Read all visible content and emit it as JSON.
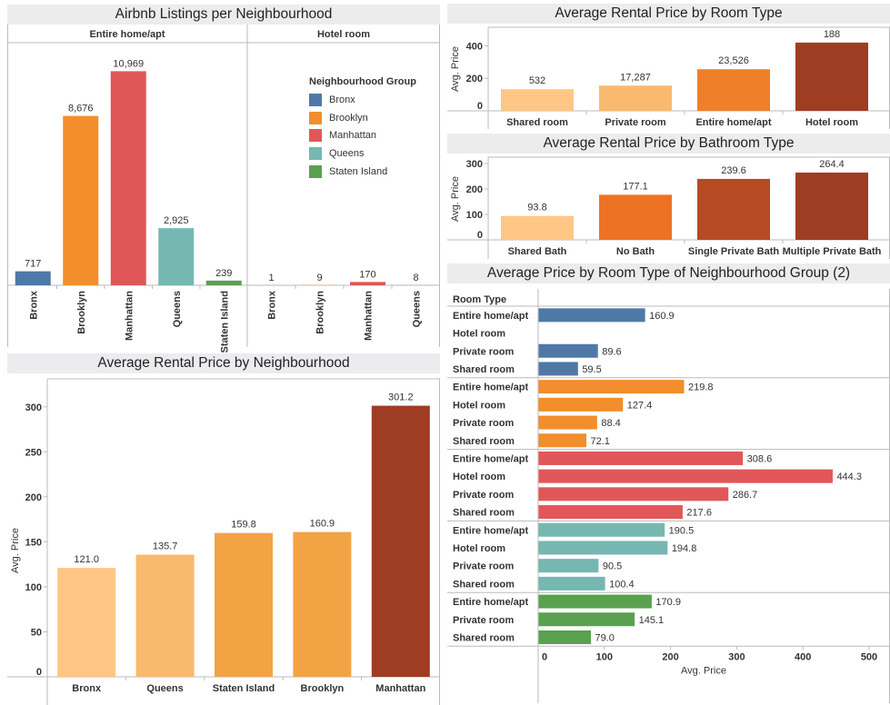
{
  "colors": {
    "Bronx": "#4e79a7",
    "Brooklyn": "#f28e2b",
    "Manhattan": "#e15759",
    "Queens": "#76b7b2",
    "Staten Island": "#59a14f",
    "axis": "#bbbbbb"
  },
  "chart_data": [
    {
      "id": "listings",
      "type": "bar",
      "title": "Airbnb Listings per Neighbourhood",
      "panels": [
        {
          "header": "Entire home/apt",
          "categories": [
            "Bronx",
            "Brooklyn",
            "Manhattan",
            "Queens",
            "Staten Island"
          ],
          "values": [
            717,
            8676,
            10969,
            2925,
            239
          ],
          "labels": [
            "717",
            "8,676",
            "10,969",
            "2,925",
            "239"
          ]
        },
        {
          "header": "Hotel room",
          "categories": [
            "Bronx",
            "Brooklyn",
            "Manhattan",
            "Queens"
          ],
          "values": [
            1,
            9,
            170,
            8
          ],
          "labels": [
            "1",
            "9",
            "170",
            "8"
          ]
        }
      ],
      "legend": {
        "title": "Neighbourhood Group",
        "items": [
          "Bronx",
          "Brooklyn",
          "Manhattan",
          "Queens",
          "Staten Island"
        ],
        "placement": "top-right"
      },
      "ylim": [
        0,
        11500
      ]
    },
    {
      "id": "room-type",
      "type": "bar",
      "title": "Average Rental Price by Room Type",
      "ylabel": "Avg. Price",
      "categories": [
        "Shared room",
        "Private room",
        "Entire home/apt",
        "Hotel room"
      ],
      "values": [
        133,
        155,
        256,
        420
      ],
      "labels": [
        "532",
        "17,287",
        "23,526",
        "188"
      ],
      "colors": [
        "#ffc685",
        "#f9b96e",
        "#f07f2a",
        "#9e3d22"
      ],
      "yticks": [
        0,
        200,
        400
      ],
      "ylim": [
        0,
        500
      ]
    },
    {
      "id": "bathroom",
      "type": "bar",
      "title": "Average Rental Price by Bathroom Type",
      "ylabel": "Avg. Price",
      "categories": [
        "Shared Bath",
        "No Bath",
        "Single Private Bath",
        "Multiple Private Bath"
      ],
      "values": [
        93.8,
        177.1,
        239.6,
        264.4
      ],
      "labels": [
        "93.8",
        "177.1",
        "239.6",
        "264.4"
      ],
      "colors": [
        "#ffc685",
        "#ed7223",
        "#b64a23",
        "#9e3d22"
      ],
      "yticks": [
        0,
        100,
        200,
        300
      ],
      "ylim": [
        0,
        300
      ]
    },
    {
      "id": "neighbourhood-price",
      "type": "bar",
      "title": "Average Rental Price by Neighbourhood",
      "ylabel": "Avg. Price",
      "categories": [
        "Bronx",
        "Queens",
        "Staten Island",
        "Brooklyn",
        "Manhattan"
      ],
      "values": [
        121.0,
        135.7,
        159.8,
        160.9,
        301.2
      ],
      "labels": [
        "121.0",
        "135.7",
        "159.8",
        "160.9",
        "301.2"
      ],
      "colors": [
        "#ffc685",
        "#f9b96e",
        "#f2a444",
        "#f2a444",
        "#9e3d22"
      ],
      "yticks": [
        0,
        50,
        100,
        150,
        200,
        250,
        300
      ],
      "ylim": [
        0,
        325
      ]
    },
    {
      "id": "room-by-group",
      "type": "bar",
      "orientation": "horizontal",
      "title": "Average Price by Room Type of Neighbourhood Group (2)",
      "row_header": "Room Type",
      "xlabel": "Avg. Price",
      "xticks": [
        0,
        100,
        200,
        300,
        400,
        500
      ],
      "xlim": [
        0,
        500
      ],
      "groups": [
        {
          "group": "Bronx",
          "rows": [
            {
              "type": "Entire home/apt",
              "value": 160.9,
              "label": "160.9"
            },
            {
              "type": "Hotel room",
              "value": null,
              "label": ""
            },
            {
              "type": "Private room",
              "value": 89.6,
              "label": "89.6"
            },
            {
              "type": "Shared room",
              "value": 59.5,
              "label": "59.5"
            }
          ]
        },
        {
          "group": "Brooklyn",
          "rows": [
            {
              "type": "Entire home/apt",
              "value": 219.8,
              "label": "219.8"
            },
            {
              "type": "Hotel room",
              "value": 127.4,
              "label": "127.4"
            },
            {
              "type": "Private room",
              "value": 88.4,
              "label": "88.4"
            },
            {
              "type": "Shared room",
              "value": 72.1,
              "label": "72.1"
            }
          ]
        },
        {
          "group": "Manhattan",
          "rows": [
            {
              "type": "Entire home/apt",
              "value": 308.6,
              "label": "308.6"
            },
            {
              "type": "Hotel room",
              "value": 444.3,
              "label": "444.3"
            },
            {
              "type": "Private room",
              "value": 286.7,
              "label": "286.7"
            },
            {
              "type": "Shared room",
              "value": 217.6,
              "label": "217.6"
            }
          ]
        },
        {
          "group": "Queens",
          "rows": [
            {
              "type": "Entire home/apt",
              "value": 190.5,
              "label": "190.5"
            },
            {
              "type": "Hotel room",
              "value": 194.8,
              "label": "194.8"
            },
            {
              "type": "Private room",
              "value": 90.5,
              "label": "90.5"
            },
            {
              "type": "Shared room",
              "value": 100.4,
              "label": "100.4"
            }
          ]
        },
        {
          "group": "Staten Island",
          "rows": [
            {
              "type": "Entire home/apt",
              "value": 170.9,
              "label": "170.9"
            },
            {
              "type": "Private room",
              "value": 145.1,
              "label": "145.1"
            },
            {
              "type": "Shared room",
              "value": 79.0,
              "label": "79.0"
            }
          ]
        }
      ]
    }
  ]
}
